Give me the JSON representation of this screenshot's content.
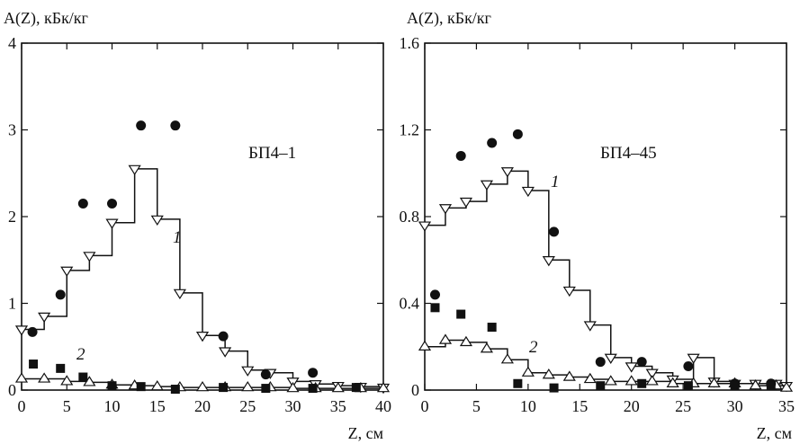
{
  "chart_data": [
    {
      "type": "scatter",
      "ylabel": "A(Z), кБк/кг",
      "xlabel": "Z, см",
      "sample_label": "БП4–1",
      "curve_labels": [
        "1",
        "2"
      ],
      "xlim": [
        0,
        40
      ],
      "ylim": [
        0,
        4
      ],
      "xticks": [
        "0",
        "5",
        "10",
        "15",
        "20",
        "25",
        "30",
        "35",
        "40"
      ],
      "yticks": [
        "0",
        "1",
        "2",
        "3",
        "4"
      ],
      "series": [
        {
          "marker": "open-triangle-down",
          "x": [
            0,
            2.5,
            5,
            7.5,
            10,
            12.5,
            15,
            17.5,
            20,
            22.5,
            25,
            27.5,
            30,
            32.5,
            35,
            37.5,
            40
          ],
          "y": [
            0.7,
            0.85,
            1.38,
            1.55,
            1.93,
            2.55,
            1.97,
            1.12,
            0.63,
            0.45,
            0.23,
            0.2,
            0.1,
            0.07,
            0.05,
            0.04,
            0.03
          ]
        },
        {
          "marker": "open-triangle-up",
          "x": [
            0,
            2.5,
            5,
            7.5,
            10,
            12.5,
            15,
            17.5,
            20,
            22.5,
            25,
            27.5,
            30,
            32.5,
            35,
            37.5,
            40
          ],
          "y": [
            0.13,
            0.13,
            0.1,
            0.09,
            0.06,
            0.05,
            0.04,
            0.03,
            0.03,
            0.03,
            0.03,
            0.03,
            0.02,
            0.02,
            0.02,
            0.02,
            0.02
          ]
        },
        {
          "marker": "filled-circle",
          "x": [
            1.2,
            4.3,
            6.8,
            10,
            13.2,
            17,
            22.3,
            27,
            32.2
          ],
          "y": [
            0.67,
            1.1,
            2.15,
            2.15,
            3.05,
            3.05,
            0.62,
            0.18,
            0.2
          ]
        },
        {
          "marker": "filled-square",
          "x": [
            1.3,
            4.3,
            6.8,
            10,
            13.2,
            17,
            22.3,
            27,
            32.2,
            37
          ],
          "y": [
            0.3,
            0.25,
            0.15,
            0.05,
            0.04,
            0.01,
            0.03,
            0.02,
            0.02,
            0.03
          ]
        }
      ]
    },
    {
      "type": "scatter",
      "ylabel": "A(Z), кБк/кг",
      "xlabel": "Z, см",
      "sample_label": "БП4–45",
      "curve_labels": [
        "1",
        "2"
      ],
      "xlim": [
        0,
        35
      ],
      "ylim": [
        0,
        1.6
      ],
      "xticks": [
        "0",
        "5",
        "10",
        "15",
        "20",
        "25",
        "30",
        "35"
      ],
      "yticks": [
        "0",
        "0.4",
        "0.8",
        "1.2",
        "1.6"
      ],
      "series": [
        {
          "marker": "open-triangle-down",
          "x": [
            0,
            2,
            4,
            6,
            8,
            10,
            12,
            14,
            16,
            18,
            20,
            22,
            24,
            26,
            28,
            30,
            32,
            34,
            35
          ],
          "y": [
            0.76,
            0.84,
            0.87,
            0.95,
            1.01,
            0.92,
            0.6,
            0.46,
            0.3,
            0.15,
            0.11,
            0.08,
            0.05,
            0.15,
            0.04,
            0.03,
            0.03,
            0.03,
            0.02
          ]
        },
        {
          "marker": "open-triangle-up",
          "x": [
            0,
            2,
            4,
            6,
            8,
            10,
            12,
            14,
            16,
            18,
            20,
            22,
            24,
            26,
            28,
            30,
            32,
            34,
            35
          ],
          "y": [
            0.2,
            0.23,
            0.22,
            0.19,
            0.14,
            0.08,
            0.07,
            0.06,
            0.05,
            0.04,
            0.04,
            0.04,
            0.03,
            0.03,
            0.03,
            0.03,
            0.02,
            0.02,
            0.01
          ]
        },
        {
          "marker": "filled-circle",
          "x": [
            1,
            3.5,
            6.5,
            9,
            12.5,
            17,
            21,
            25.5,
            30,
            33.5
          ],
          "y": [
            0.44,
            1.08,
            1.14,
            1.18,
            0.73,
            0.13,
            0.13,
            0.11,
            0.03,
            0.03
          ]
        },
        {
          "marker": "filled-square",
          "x": [
            1,
            3.5,
            6.5,
            9,
            12.5,
            17,
            21,
            25.5,
            30,
            33.5
          ],
          "y": [
            0.38,
            0.35,
            0.29,
            0.03,
            0.01,
            0.02,
            0.03,
            0.02,
            0.02,
            0.02
          ]
        }
      ]
    }
  ]
}
